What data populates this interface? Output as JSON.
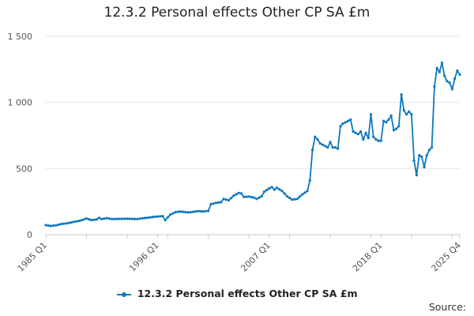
{
  "chart_data": {
    "type": "line",
    "title": "12.3.2 Personal effects Other CP SA £m",
    "xlabel": "",
    "ylabel": "",
    "x_start": "1985 Q1",
    "x_end": "2025 Q4",
    "ylim": [
      0,
      1500
    ],
    "yticks": [
      0,
      500,
      1000,
      1500
    ],
    "ytick_labels": [
      "0",
      "500",
      "1 000",
      "1 500"
    ],
    "xtick_labels": [
      "1985 Q1",
      "1996 Q1",
      "2007 Q1",
      "2018 Q1",
      "2025 Q4"
    ],
    "grid": true,
    "legend": "bottom",
    "color": "#0d78bf",
    "series": [
      {
        "name": "12.3.2 Personal effects Other CP SA £m",
        "anchors": [
          [
            "1985 Q1",
            72
          ],
          [
            "1985 Q3",
            66
          ],
          [
            "1986 Q1",
            70
          ],
          [
            "1986 Q3",
            80
          ],
          [
            "1987 Q1",
            85
          ],
          [
            "1987 Q3",
            92
          ],
          [
            "1988 Q1",
            100
          ],
          [
            "1988 Q3",
            108
          ],
          [
            "1989 Q1",
            122
          ],
          [
            "1989 Q3",
            110
          ],
          [
            "1990 Q1",
            115
          ],
          [
            "1990 Q2",
            127
          ],
          [
            "1990 Q3",
            118
          ],
          [
            "1991 Q1",
            125
          ],
          [
            "1991 Q3",
            118
          ],
          [
            "1993 Q1",
            120
          ],
          [
            "1994 Q1",
            118
          ],
          [
            "1994 Q3",
            123
          ],
          [
            "1995 Q1",
            128
          ],
          [
            "1995 Q3",
            133
          ],
          [
            "1996 Q1",
            137
          ],
          [
            "1996 Q3",
            140
          ],
          [
            "1996 Q4",
            110
          ],
          [
            "1997 Q2",
            150
          ],
          [
            "1997 Q4",
            170
          ],
          [
            "1998 Q2",
            175
          ],
          [
            "1999 Q1",
            168
          ],
          [
            "1999 Q3",
            172
          ],
          [
            "2000 Q1",
            178
          ],
          [
            "2000 Q3",
            175
          ],
          [
            "2001 Q1",
            180
          ],
          [
            "2001 Q2",
            230
          ],
          [
            "2001 Q4",
            240
          ],
          [
            "2002 Q2",
            245
          ],
          [
            "2002 Q3",
            270
          ],
          [
            "2003 Q1",
            260
          ],
          [
            "2003 Q3",
            295
          ],
          [
            "2004 Q1",
            315
          ],
          [
            "2004 Q2",
            312
          ],
          [
            "2004 Q3",
            285
          ],
          [
            "2005 Q1",
            288
          ],
          [
            "2005 Q3",
            280
          ],
          [
            "2005 Q4",
            270
          ],
          [
            "2006 Q2",
            290
          ],
          [
            "2006 Q3",
            325
          ],
          [
            "2007 Q1",
            350
          ],
          [
            "2007 Q2",
            360
          ],
          [
            "2007 Q3",
            340
          ],
          [
            "2007 Q4",
            355
          ],
          [
            "2008 Q2",
            330
          ],
          [
            "2008 Q4",
            290
          ],
          [
            "2009 Q2",
            265
          ],
          [
            "2009 Q4",
            270
          ],
          [
            "2010 Q2",
            305
          ],
          [
            "2010 Q4",
            330
          ],
          [
            "2011 Q1",
            410
          ],
          [
            "2011 Q2",
            640
          ],
          [
            "2011 Q3",
            740
          ],
          [
            "2011 Q4",
            720
          ],
          [
            "2012 Q1",
            690
          ],
          [
            "2012 Q2",
            680
          ],
          [
            "2012 Q4",
            660
          ],
          [
            "2013 Q1",
            700
          ],
          [
            "2013 Q2",
            660
          ],
          [
            "2013 Q3",
            660
          ],
          [
            "2013 Q4",
            650
          ],
          [
            "2014 Q1",
            820
          ],
          [
            "2014 Q2",
            840
          ],
          [
            "2014 Q4",
            860
          ],
          [
            "2015 Q1",
            870
          ],
          [
            "2015 Q2",
            780
          ],
          [
            "2015 Q3",
            770
          ],
          [
            "2015 Q4",
            760
          ],
          [
            "2016 Q1",
            780
          ],
          [
            "2016 Q2",
            720
          ],
          [
            "2016 Q3",
            770
          ],
          [
            "2016 Q4",
            730
          ],
          [
            "2017 Q1",
            910
          ],
          [
            "2017 Q2",
            740
          ],
          [
            "2017 Q3",
            720
          ],
          [
            "2017 Q4",
            710
          ],
          [
            "2018 Q1",
            710
          ],
          [
            "2018 Q2",
            860
          ],
          [
            "2018 Q3",
            850
          ],
          [
            "2018 Q4",
            870
          ],
          [
            "2019 Q1",
            900
          ],
          [
            "2019 Q2",
            790
          ],
          [
            "2019 Q3",
            800
          ],
          [
            "2019 Q4",
            820
          ],
          [
            "2020 Q1",
            1060
          ],
          [
            "2020 Q2",
            940
          ],
          [
            "2020 Q3",
            910
          ],
          [
            "2020 Q4",
            930
          ],
          [
            "2021 Q1",
            910
          ],
          [
            "2021 Q2",
            560
          ],
          [
            "2021 Q3",
            450
          ],
          [
            "2021 Q4",
            600
          ],
          [
            "2022 Q1",
            590
          ],
          [
            "2022 Q2",
            510
          ],
          [
            "2022 Q3",
            600
          ],
          [
            "2022 Q4",
            640
          ],
          [
            "2023 Q1",
            660
          ],
          [
            "2023 Q2",
            1120
          ],
          [
            "2023 Q3",
            1260
          ],
          [
            "2023 Q4",
            1230
          ],
          [
            "2024 Q1",
            1300
          ],
          [
            "2024 Q2",
            1200
          ],
          [
            "2024 Q3",
            1160
          ],
          [
            "2024 Q4",
            1150
          ],
          [
            "2025 Q1",
            1100
          ],
          [
            "2025 Q2",
            1180
          ],
          [
            "2025 Q3",
            1240
          ],
          [
            "2025 Q4",
            1210
          ]
        ]
      }
    ]
  },
  "legend_label": "12.3.2 Personal effects Other CP SA £m",
  "source_label": "Source:"
}
